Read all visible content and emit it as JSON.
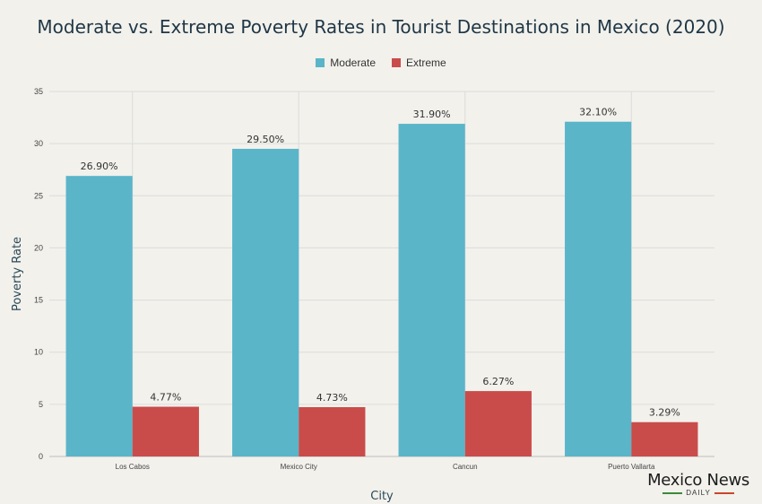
{
  "colors": {
    "moderate": "#5ab5c9",
    "extreme": "#c94c4a",
    "logo_left": "#3a8a3a",
    "logo_right": "#c8462e"
  },
  "brand": {
    "name": "Mexico News",
    "sub": "DAILY"
  },
  "chart_data": {
    "type": "bar",
    "title": "Moderate vs. Extreme Poverty Rates in Tourist Destinations in Mexico (2020)",
    "xlabel": "City",
    "ylabel": "Poverty Rate",
    "categories": [
      "Los Cabos",
      "Mexico City",
      "Cancun",
      "Puerto Vallarta"
    ],
    "series": [
      {
        "name": "Moderate",
        "values": [
          26.9,
          29.5,
          31.9,
          32.1
        ],
        "labels": [
          "26.90%",
          "29.50%",
          "31.90%",
          "32.10%"
        ]
      },
      {
        "name": "Extreme",
        "values": [
          4.77,
          4.73,
          6.27,
          3.29
        ],
        "labels": [
          "4.77%",
          "4.73%",
          "6.27%",
          "3.29%"
        ]
      }
    ],
    "ylim": [
      0,
      35
    ],
    "yticks": [
      0,
      5,
      10,
      15,
      20,
      25,
      30,
      35
    ],
    "grid": true,
    "legend": "top-center"
  }
}
